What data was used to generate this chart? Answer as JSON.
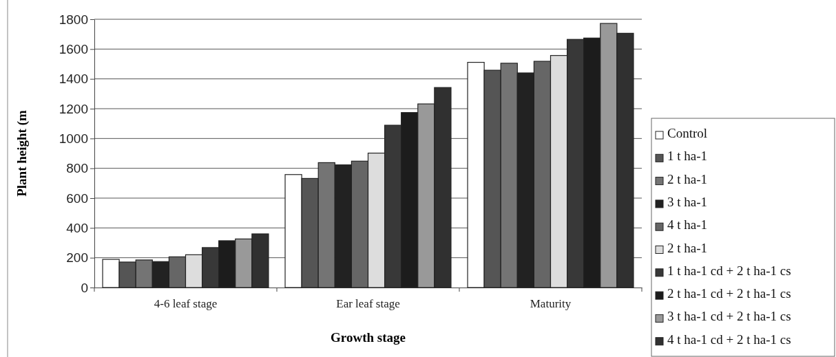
{
  "chart_data": {
    "type": "bar",
    "xlabel": "Growth stage",
    "ylabel": "Plant height (m",
    "categories": [
      "4-6 leaf stage",
      "Ear leaf stage",
      "Maturity"
    ],
    "ylim": [
      0,
      1800
    ],
    "yticks": [
      0,
      200,
      400,
      600,
      800,
      1000,
      1200,
      1400,
      1600,
      1800
    ],
    "grid": "y",
    "legend": "right",
    "series": [
      {
        "name": "Control",
        "color": "#ffffff",
        "values": [
          189,
          758,
          1511
        ]
      },
      {
        "name": "1 t ha-1",
        "color": "#555555",
        "values": [
          171,
          732,
          1458
        ]
      },
      {
        "name": "2 t ha-1",
        "color": "#747474",
        "values": [
          185,
          838,
          1505
        ]
      },
      {
        "name": "3 t ha-1",
        "color": "#222222",
        "values": [
          174,
          823,
          1440
        ]
      },
      {
        "name": "4 t ha-1",
        "color": "#666666",
        "values": [
          206,
          848,
          1518
        ]
      },
      {
        "name": "2 t ha-1",
        "color": "#dddddd",
        "values": [
          220,
          902,
          1557
        ]
      },
      {
        "name": "1 t ha-1 cd + 2  t ha-1 cs",
        "color": "#383838",
        "values": [
          268,
          1089,
          1665
        ]
      },
      {
        "name": "2 t ha-1 cd + 2 t ha-1 cs",
        "color": "#1c1c1c",
        "values": [
          314,
          1174,
          1674
        ]
      },
      {
        "name": "3 t ha-1 cd + 2  t ha-1 cs",
        "color": "#999999",
        "values": [
          326,
          1232,
          1772
        ]
      },
      {
        "name": "4  t ha-1 cd + 2  t ha-1 cs",
        "color": "#303030",
        "values": [
          360,
          1342,
          1706
        ]
      }
    ]
  }
}
